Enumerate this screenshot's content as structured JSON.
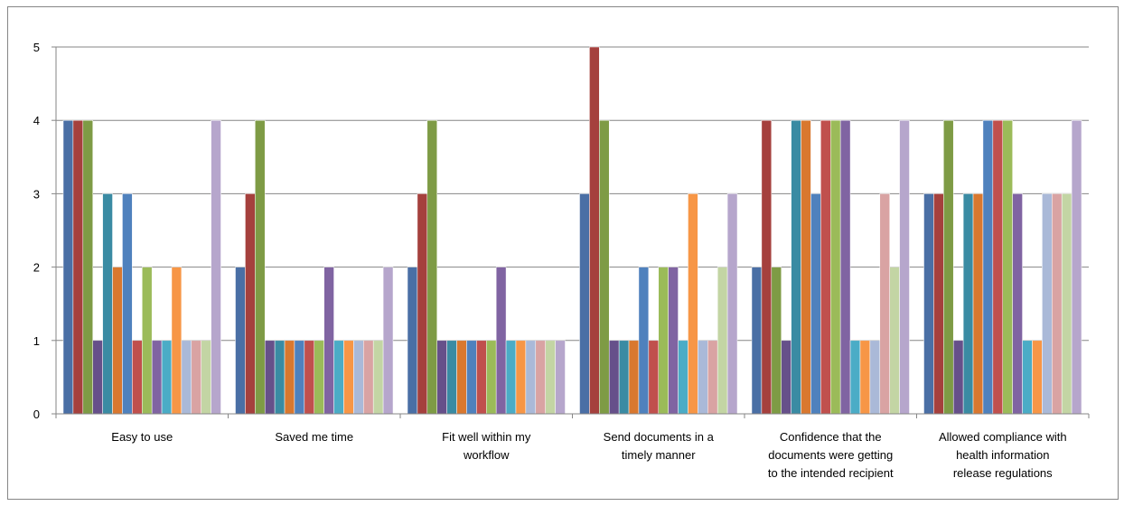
{
  "chart_data": {
    "type": "bar",
    "title": "",
    "xlabel": "",
    "ylabel": "",
    "ylim": [
      0,
      5
    ],
    "yticks": [
      "0",
      "1",
      "2",
      "3",
      "4",
      "5"
    ],
    "grid": true,
    "legend": "none",
    "categories": [
      [
        "Easy to use"
      ],
      [
        "Saved me time"
      ],
      [
        "Fit well within my",
        "workflow"
      ],
      [
        "Send documents in a",
        "timely manner"
      ],
      [
        "Confidence that the",
        "documents were getting",
        "to the intended recipient"
      ],
      [
        "Allowed compliance with",
        "health information",
        "release regulations"
      ]
    ],
    "series": [
      {
        "color": "#4A6FA5",
        "values": [
          4,
          2,
          2,
          3,
          2,
          3
        ]
      },
      {
        "color": "#A5403D",
        "values": [
          4,
          3,
          3,
          5,
          4,
          3
        ]
      },
      {
        "color": "#7E9B45",
        "values": [
          4,
          4,
          4,
          4,
          2,
          4
        ]
      },
      {
        "color": "#66508A",
        "values": [
          1,
          1,
          1,
          1,
          1,
          1
        ]
      },
      {
        "color": "#3A8BA3",
        "values": [
          3,
          1,
          1,
          1,
          4,
          3
        ]
      },
      {
        "color": "#D9782F",
        "values": [
          2,
          1,
          1,
          1,
          4,
          3
        ]
      },
      {
        "color": "#4F81BD",
        "values": [
          3,
          1,
          1,
          2,
          3,
          4
        ]
      },
      {
        "color": "#C0504D",
        "values": [
          1,
          1,
          1,
          1,
          4,
          4
        ]
      },
      {
        "color": "#9BBB59",
        "values": [
          2,
          1,
          1,
          2,
          4,
          4
        ]
      },
      {
        "color": "#8064A2",
        "values": [
          1,
          2,
          2,
          2,
          4,
          3
        ]
      },
      {
        "color": "#4BACC6",
        "values": [
          1,
          1,
          1,
          1,
          1,
          1
        ]
      },
      {
        "color": "#F79646",
        "values": [
          2,
          1,
          1,
          3,
          1,
          1
        ]
      },
      {
        "color": "#AAB9D8",
        "values": [
          1,
          1,
          1,
          1,
          1,
          3
        ]
      },
      {
        "color": "#D9A3A3",
        "values": [
          1,
          1,
          1,
          1,
          3,
          3
        ]
      },
      {
        "color": "#C3D5A4",
        "values": [
          1,
          1,
          1,
          2,
          2,
          3
        ]
      },
      {
        "color": "#B6A6CC",
        "values": [
          4,
          2,
          1,
          3,
          4,
          4
        ]
      }
    ]
  }
}
